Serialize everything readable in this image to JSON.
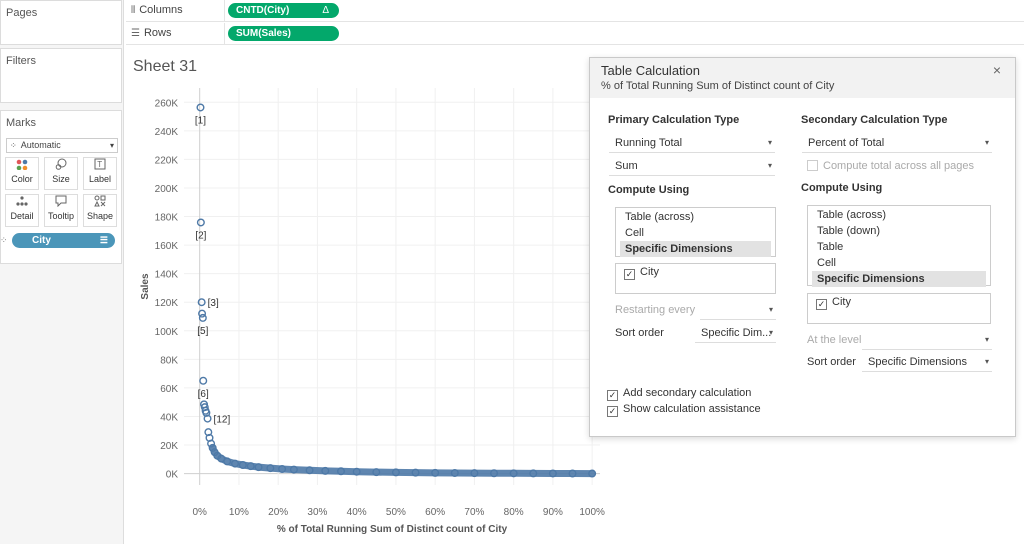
{
  "left_panel": {
    "pages_title": "Pages",
    "filters_title": "Filters",
    "marks_title": "Marks",
    "mark_type": "Automatic",
    "mark_buttons": [
      {
        "label": "Color",
        "icon": "color-icon"
      },
      {
        "label": "Size",
        "icon": "size-icon"
      },
      {
        "label": "Label",
        "icon": "label-icon"
      },
      {
        "label": "Detail",
        "icon": "detail-icon"
      },
      {
        "label": "Tooltip",
        "icon": "tooltip-icon"
      },
      {
        "label": "Shape",
        "icon": "shape-icon"
      }
    ],
    "detail_field": "City"
  },
  "shelves": {
    "columns_label": "Columns",
    "columns_pill": "CNTD(City)",
    "columns_pill_badge": "Δ",
    "rows_label": "Rows",
    "rows_pill": "SUM(Sales)"
  },
  "sheet_title": "Sheet 31",
  "chart_data": {
    "type": "scatter",
    "title": "",
    "xlabel": "% of Total Running Sum of Distinct count of City",
    "ylabel": "Sales",
    "xlim": [
      -4,
      102
    ],
    "ylim": [
      -8000,
      270000
    ],
    "x_ticks": [
      "0%",
      "10%",
      "20%",
      "30%",
      "40%",
      "50%",
      "60%",
      "70%",
      "80%",
      "90%",
      "100%"
    ],
    "y_ticks": [
      "0K",
      "20K",
      "40K",
      "60K",
      "80K",
      "100K",
      "120K",
      "140K",
      "160K",
      "180K",
      "200K",
      "220K",
      "240K",
      "260K"
    ],
    "marker_color": "#4e79a7",
    "labeled_points": [
      {
        "x": 0.2,
        "y": 256368,
        "label": "[1]"
      },
      {
        "x": 0.3,
        "y": 175851,
        "label": "[2]"
      },
      {
        "x": 0.5,
        "y": 120000,
        "label": "[3]"
      },
      {
        "x": 0.6,
        "y": 112000,
        "label": ""
      },
      {
        "x": 0.8,
        "y": 109000,
        "label": "[5]"
      },
      {
        "x": 0.9,
        "y": 65000,
        "label": "[6]"
      },
      {
        "x": 2.0,
        "y": 38500,
        "label": "[12]"
      }
    ],
    "points": [
      {
        "x": 1.1,
        "y": 48500
      },
      {
        "x": 1.3,
        "y": 46500
      },
      {
        "x": 1.5,
        "y": 44000
      },
      {
        "x": 1.7,
        "y": 42500
      },
      {
        "x": 2.2,
        "y": 29000
      },
      {
        "x": 2.5,
        "y": 25000
      },
      {
        "x": 2.9,
        "y": 21000
      },
      {
        "x": 3.3,
        "y": 18000
      },
      {
        "x": 3.8,
        "y": 15000
      },
      {
        "x": 4.5,
        "y": 12500
      },
      {
        "x": 5.5,
        "y": 10500
      },
      {
        "x": 7,
        "y": 8500
      },
      {
        "x": 9,
        "y": 7000
      },
      {
        "x": 11,
        "y": 6000
      },
      {
        "x": 13,
        "y": 5200
      },
      {
        "x": 15,
        "y": 4500
      },
      {
        "x": 18,
        "y": 3800
      },
      {
        "x": 21,
        "y": 3200
      },
      {
        "x": 24,
        "y": 2800
      },
      {
        "x": 28,
        "y": 2300
      },
      {
        "x": 32,
        "y": 1900
      },
      {
        "x": 36,
        "y": 1600
      },
      {
        "x": 40,
        "y": 1300
      },
      {
        "x": 45,
        "y": 1000
      },
      {
        "x": 50,
        "y": 800
      },
      {
        "x": 55,
        "y": 650
      },
      {
        "x": 60,
        "y": 500
      },
      {
        "x": 65,
        "y": 400
      },
      {
        "x": 70,
        "y": 300
      },
      {
        "x": 75,
        "y": 230
      },
      {
        "x": 80,
        "y": 170
      },
      {
        "x": 85,
        "y": 120
      },
      {
        "x": 90,
        "y": 80
      },
      {
        "x": 95,
        "y": 40
      },
      {
        "x": 100,
        "y": 10
      }
    ]
  },
  "dialog": {
    "title": "Table Calculation",
    "subtitle": "% of Total Running Sum of Distinct count of City",
    "close_icon": "×",
    "primary": {
      "heading": "Primary Calculation Type",
      "calc_type": "Running Total",
      "aggregation": "Sum",
      "compute_using_heading": "Compute Using",
      "compute_options": [
        "Table (across)",
        "Cell",
        "Specific Dimensions"
      ],
      "selected_option": "Specific Dimensions",
      "dimensions": [
        {
          "label": "City",
          "checked": true
        }
      ],
      "restarting_label": "Restarting every",
      "sort_label": "Sort order",
      "sort_value": "Specific Dim..."
    },
    "secondary": {
      "heading": "Secondary Calculation Type",
      "calc_type": "Percent of Total",
      "compute_total_label": "Compute total across all pages",
      "compute_using_heading": "Compute Using",
      "compute_options": [
        "Table (across)",
        "Table (down)",
        "Table",
        "Cell",
        "Specific Dimensions"
      ],
      "selected_option": "Specific Dimensions",
      "dimensions": [
        {
          "label": "City",
          "checked": true
        }
      ],
      "at_level_label": "At the level",
      "sort_label": "Sort order",
      "sort_value": "Specific Dimensions"
    },
    "add_secondary_label": "Add secondary calculation",
    "show_assistance_label": "Show calculation assistance",
    "checkmark": "✓"
  }
}
